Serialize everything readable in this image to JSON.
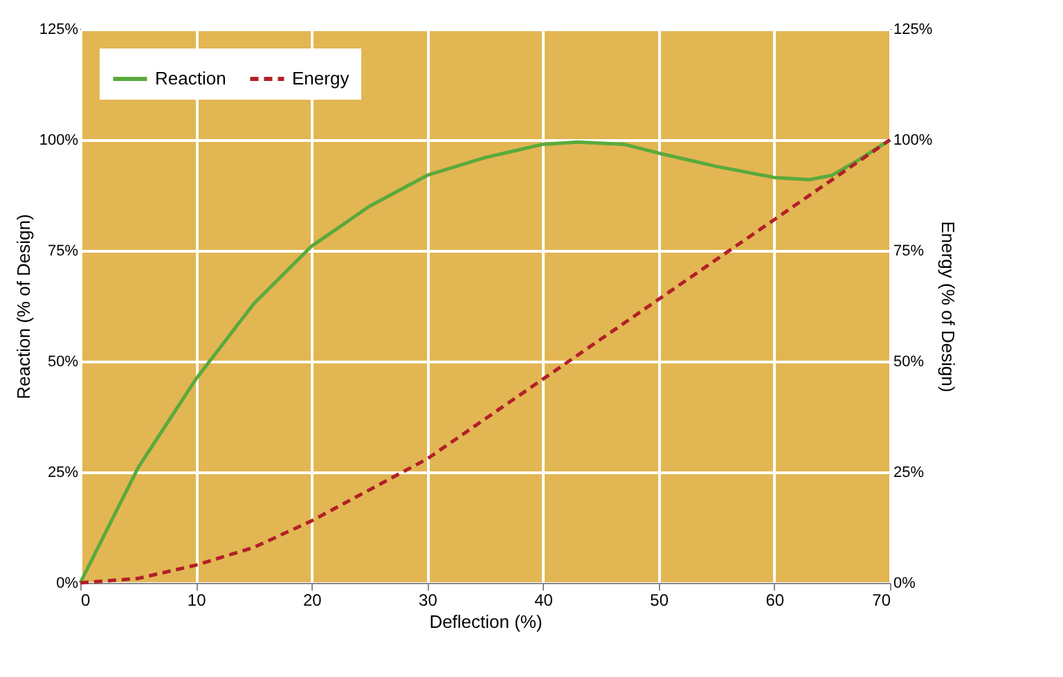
{
  "chart_data": {
    "type": "line",
    "xlabel": "Deflection (%)",
    "ylabel": "Reaction (% of Design)",
    "y2label": "Energy (% of Design)",
    "xlim": [
      0,
      70
    ],
    "xticks": [
      0,
      10,
      20,
      30,
      40,
      50,
      60,
      70
    ],
    "ylim": [
      0,
      125
    ],
    "yticks": [
      {
        "value": 0,
        "label": "0%"
      },
      {
        "value": 25,
        "label": "25%"
      },
      {
        "value": 50,
        "label": "50%"
      },
      {
        "value": 75,
        "label": "75%"
      },
      {
        "value": 100,
        "label": "100%"
      },
      {
        "value": 125,
        "label": "125%"
      }
    ],
    "y2lim": [
      0,
      125
    ],
    "y2ticks": [
      {
        "value": 0,
        "label": "0%"
      },
      {
        "value": 25,
        "label": "25%"
      },
      {
        "value": 50,
        "label": "50%"
      },
      {
        "value": 75,
        "label": "75%"
      },
      {
        "value": 100,
        "label": "100%"
      },
      {
        "value": 125,
        "label": "125%"
      }
    ],
    "grid": true,
    "legend": "top left",
    "series": [
      {
        "name": "Reaction",
        "color": "#5aaa3c",
        "line_style": "solid",
        "x": [
          0,
          5,
          10,
          15,
          20,
          25,
          30,
          35,
          40,
          43,
          47,
          50,
          55,
          60,
          63,
          65,
          67,
          70
        ],
        "values": [
          0,
          26,
          46,
          63,
          76,
          85,
          92,
          96,
          99,
          99.5,
          99,
          97,
          94,
          91.5,
          91,
          92,
          95,
          100
        ]
      },
      {
        "name": "Energy",
        "color": "#b22028",
        "line_style": "dashed",
        "axis": "y2",
        "x": [
          0,
          5,
          10,
          15,
          20,
          25,
          30,
          35,
          40,
          45,
          50,
          55,
          60,
          65,
          70
        ],
        "values": [
          0,
          1,
          4,
          8,
          14,
          21,
          28,
          37,
          46,
          55,
          64,
          73,
          82,
          91,
          100
        ]
      }
    ]
  }
}
